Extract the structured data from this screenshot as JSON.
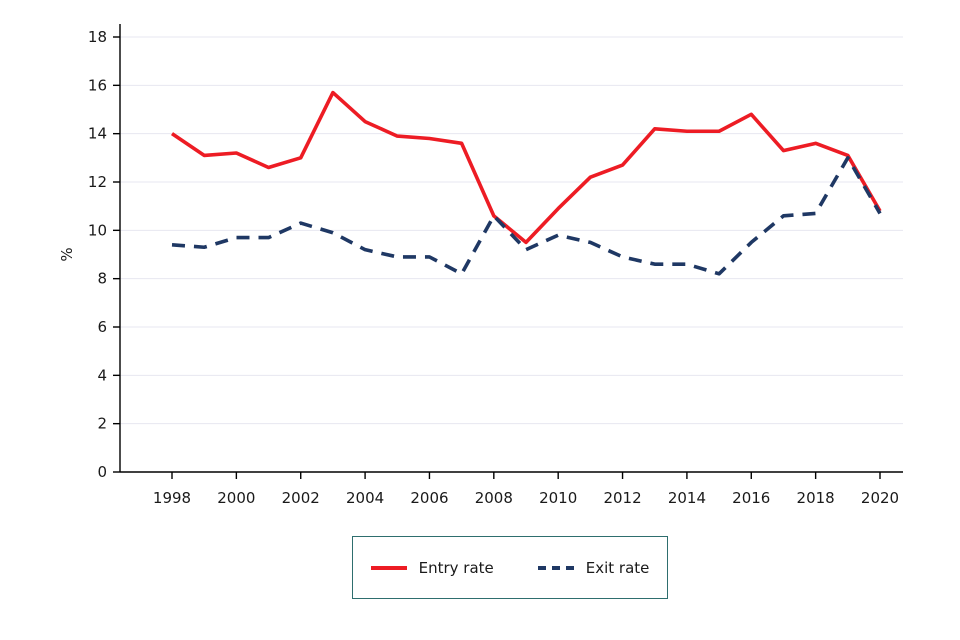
{
  "chart_data": {
    "type": "line",
    "title": "",
    "xlabel": "",
    "ylabel": "%",
    "ylim": [
      0,
      18
    ],
    "ytick_step": 2,
    "grid": true,
    "legend_position": "bottom",
    "x": [
      1998,
      1999,
      2000,
      2001,
      2002,
      2003,
      2004,
      2005,
      2006,
      2007,
      2008,
      2009,
      2010,
      2011,
      2012,
      2013,
      2014,
      2015,
      2016,
      2017,
      2018,
      2019,
      2020
    ],
    "xticks": [
      1998,
      2000,
      2002,
      2004,
      2006,
      2008,
      2010,
      2012,
      2014,
      2016,
      2018,
      2020
    ],
    "series": [
      {
        "name": "Entry rate",
        "style": "solid",
        "color": "#ed1c24",
        "values": [
          14.0,
          13.1,
          13.2,
          12.6,
          13.0,
          15.7,
          14.5,
          13.9,
          13.8,
          13.6,
          10.6,
          9.5,
          10.9,
          12.2,
          12.7,
          14.2,
          14.1,
          14.1,
          14.8,
          13.3,
          13.6,
          13.1,
          10.8
        ]
      },
      {
        "name": "Exit rate",
        "style": "dashed",
        "color": "#1f3864",
        "values": [
          9.4,
          9.3,
          9.7,
          9.7,
          10.3,
          9.9,
          9.2,
          8.9,
          8.9,
          8.2,
          10.6,
          9.2,
          9.8,
          9.5,
          8.9,
          8.6,
          8.6,
          8.2,
          9.5,
          10.6,
          10.7,
          13.0,
          10.7
        ]
      }
    ],
    "colors": {
      "grid": "#e7e7f0",
      "axis": "#000000",
      "text": "#1a1a1a",
      "legend_border": "#2e6e6e"
    }
  }
}
